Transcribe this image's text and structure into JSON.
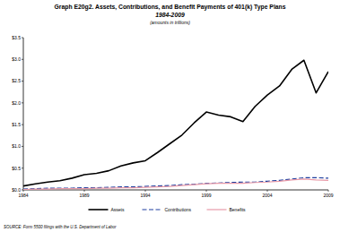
{
  "chart_data": {
    "type": "line",
    "title": "Graph E20g2. Assets, Contributions, and Benefit Payments of 401(k) Type Plans",
    "subtitle": "1984-2009",
    "annotations": [
      "(amounts in trillions)",
      "SOURCE: Form 5500 filings with the U.S. Department of Labor"
    ],
    "x": [
      1984,
      1985,
      1986,
      1987,
      1988,
      1989,
      1990,
      1991,
      1992,
      1993,
      1994,
      1995,
      1996,
      1997,
      1998,
      1999,
      2000,
      2001,
      2002,
      2003,
      2004,
      2005,
      2006,
      2007,
      2008,
      2009
    ],
    "series": [
      {
        "name": "Assets",
        "color": "#000000",
        "line_style": "solid",
        "values": [
          0.09,
          0.14,
          0.18,
          0.21,
          0.27,
          0.35,
          0.38,
          0.44,
          0.55,
          0.62,
          0.67,
          0.86,
          1.06,
          1.26,
          1.54,
          1.79,
          1.72,
          1.68,
          1.57,
          1.92,
          2.18,
          2.39,
          2.77,
          2.98,
          2.23,
          2.72
        ]
      },
      {
        "name": "Contributions",
        "color": "#1f3f9f",
        "line_style": "dashed",
        "values": [
          0.02,
          0.03,
          0.04,
          0.04,
          0.04,
          0.05,
          0.05,
          0.06,
          0.07,
          0.07,
          0.08,
          0.09,
          0.1,
          0.12,
          0.13,
          0.15,
          0.16,
          0.17,
          0.18,
          0.18,
          0.2,
          0.22,
          0.25,
          0.28,
          0.28,
          0.27
        ]
      },
      {
        "name": "Benefits",
        "color": "#e89aa8",
        "line_style": "solid",
        "values": [
          0.01,
          0.02,
          0.02,
          0.03,
          0.03,
          0.03,
          0.04,
          0.04,
          0.05,
          0.05,
          0.06,
          0.07,
          0.08,
          0.1,
          0.12,
          0.14,
          0.15,
          0.15,
          0.15,
          0.17,
          0.18,
          0.2,
          0.23,
          0.25,
          0.23,
          0.22
        ]
      }
    ],
    "xlim": [
      1984,
      2009
    ],
    "xticks": [
      1984,
      1989,
      1994,
      1999,
      2004,
      2009
    ],
    "ylim": [
      0,
      3.5
    ],
    "yticks": [
      {
        "value": 0,
        "label": "$0.0"
      },
      {
        "value": 0.5,
        "label": "$0.5"
      },
      {
        "value": 1,
        "label": "$1.0"
      },
      {
        "value": 1.5,
        "label": "$1.5"
      },
      {
        "value": 2,
        "label": "$2.0"
      },
      {
        "value": 2.5,
        "label": "$2.5"
      },
      {
        "value": 3,
        "label": "$3.0"
      },
      {
        "value": 3.5,
        "label": "$3.5"
      }
    ],
    "grid": false,
    "legend": "bottom"
  }
}
